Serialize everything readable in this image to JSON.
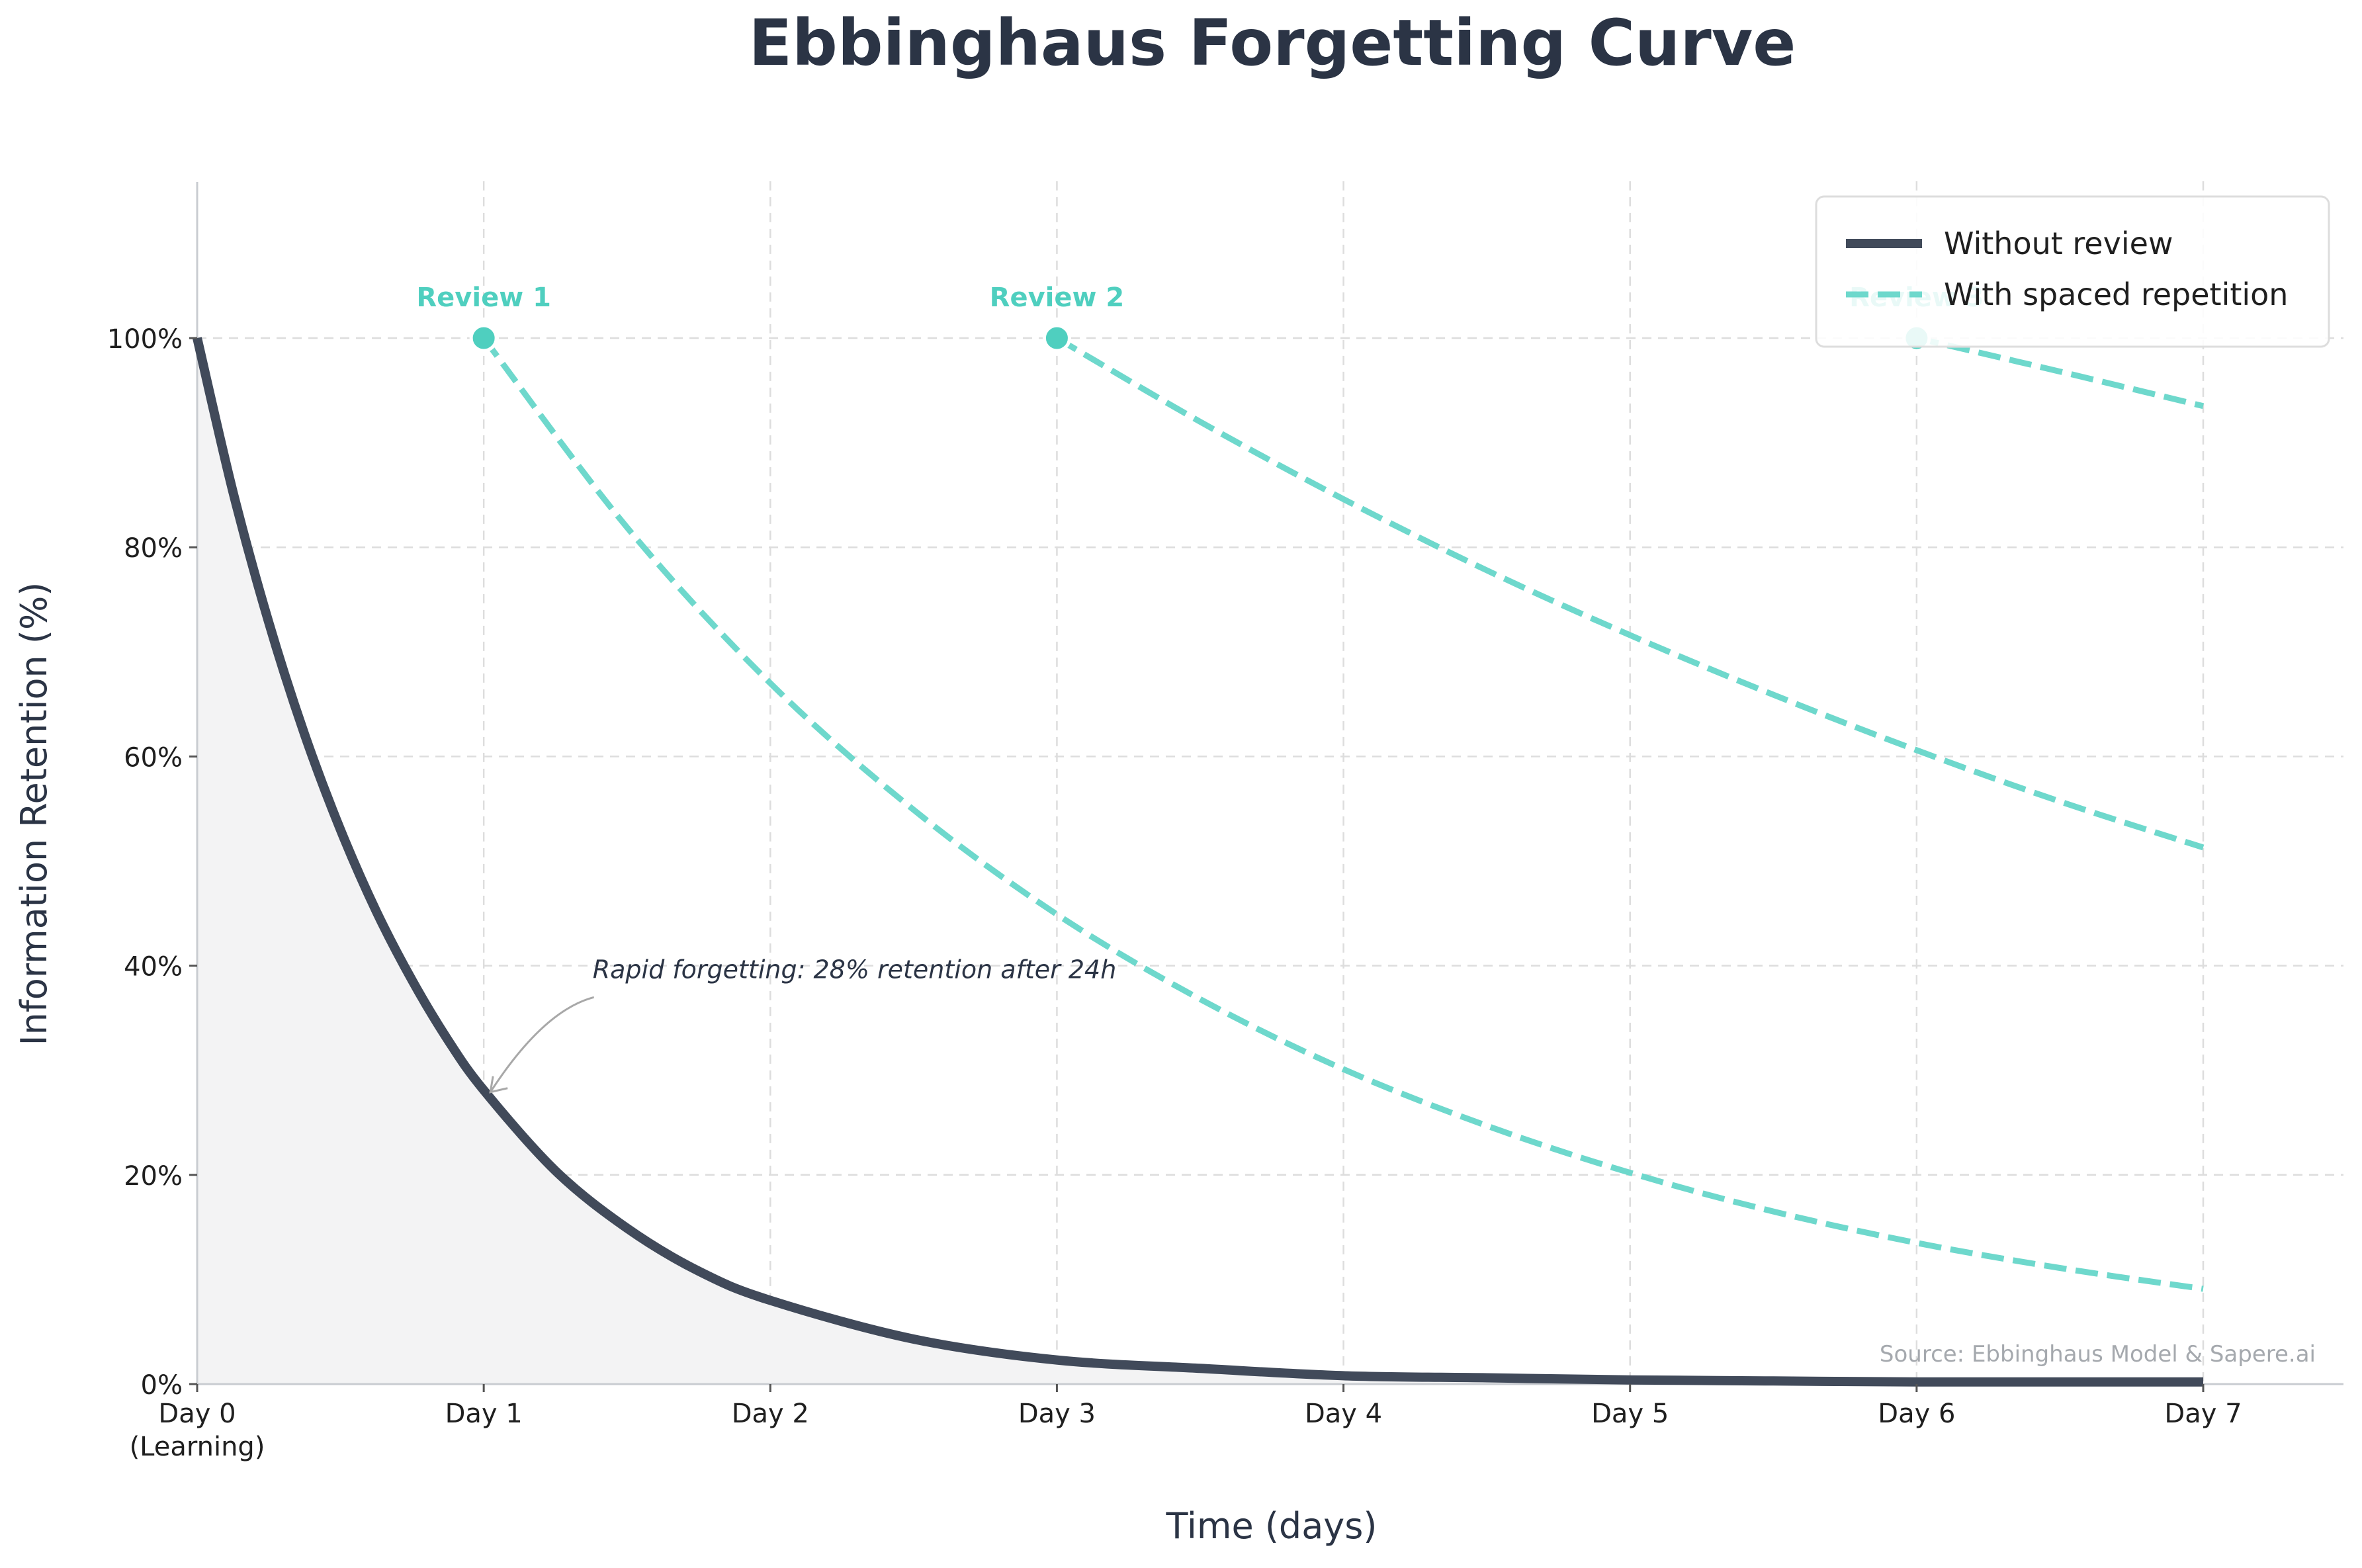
{
  "chart_data": {
    "type": "line",
    "title": "Ebbinghaus Forgetting Curve",
    "xlabel": "Time (days)",
    "ylabel": "Information Retention (%)",
    "xlim": [
      0,
      7
    ],
    "ylim": [
      0,
      115
    ],
    "x_ticks": [
      {
        "value": 0,
        "label": "Day 0",
        "sublabel": "(Learning)"
      },
      {
        "value": 1,
        "label": "Day 1",
        "sublabel": ""
      },
      {
        "value": 2,
        "label": "Day 2",
        "sublabel": ""
      },
      {
        "value": 3,
        "label": "Day 3",
        "sublabel": ""
      },
      {
        "value": 4,
        "label": "Day 4",
        "sublabel": ""
      },
      {
        "value": 5,
        "label": "Day 5",
        "sublabel": ""
      },
      {
        "value": 6,
        "label": "Day 6",
        "sublabel": ""
      },
      {
        "value": 7,
        "label": "Day 7",
        "sublabel": ""
      }
    ],
    "y_ticks": [
      {
        "value": 0,
        "label": "0%"
      },
      {
        "value": 20,
        "label": "20%"
      },
      {
        "value": 40,
        "label": "40%"
      },
      {
        "value": 60,
        "label": "60%"
      },
      {
        "value": 80,
        "label": "80%"
      },
      {
        "value": 100,
        "label": "100%"
      }
    ],
    "grid": true,
    "legend_position": "top-right",
    "series": [
      {
        "name": "Without review",
        "style": "solid",
        "color": "#414a5a",
        "fill_under": true,
        "x": [
          0,
          0.125,
          0.25,
          0.375,
          0.5,
          0.625,
          0.75,
          0.875,
          1,
          1.25,
          1.5,
          1.75,
          2,
          2.5,
          3,
          3.5,
          4,
          4.5,
          5,
          5.5,
          6,
          6.5,
          7
        ],
        "y": [
          100,
          85.3,
          72.8,
          62.1,
          53.0,
          45.2,
          38.6,
          32.9,
          28.1,
          20.4,
          14.9,
          10.8,
          8.0,
          4.3,
          2.3,
          1.5,
          0.8,
          0.6,
          0.4,
          0.3,
          0.2,
          0.2,
          0.2
        ]
      },
      {
        "name": "With spaced repetition",
        "style": "dashed",
        "color": "#6ed8cc",
        "segments": [
          {
            "x": [
              1,
              1.5,
              2,
              2.5,
              3,
              3.5,
              4,
              4.5,
              5,
              5.5,
              6,
              6.5,
              7
            ],
            "y": [
              100,
              81.9,
              67.0,
              54.9,
              44.9,
              36.8,
              30.1,
              24.7,
              20.2,
              16.5,
              13.5,
              11.1,
              9.1
            ]
          },
          {
            "x": [
              3,
              3.5,
              4,
              4.5,
              5,
              5.5,
              6,
              6.5,
              7
            ],
            "y": [
              100,
              92.0,
              84.6,
              77.8,
              71.6,
              65.9,
              60.6,
              55.7,
              51.3
            ]
          },
          {
            "x": [
              6,
              6.5,
              7
            ],
            "y": [
              100,
              96.8,
              93.5
            ]
          }
        ]
      }
    ],
    "review_points": [
      {
        "x": 1,
        "y": 100,
        "label": "Review 1"
      },
      {
        "x": 3,
        "y": 100,
        "label": "Review 2"
      },
      {
        "x": 6,
        "y": 100,
        "label": "Review 3"
      }
    ],
    "annotation": {
      "text": "Rapid forgetting: 28% retention after 24h",
      "target_x": 1,
      "target_y": 28.1,
      "text_x": 1.5,
      "text_y": 38.5
    },
    "source": "Source: Ebbinghaus Model & Sapere.ai",
    "colors": {
      "without": "#414a5a",
      "with": "#6ed8cc",
      "review_marker": "#4fcfbf",
      "grid": "#dddddd",
      "fill": "#f3f3f4"
    }
  }
}
